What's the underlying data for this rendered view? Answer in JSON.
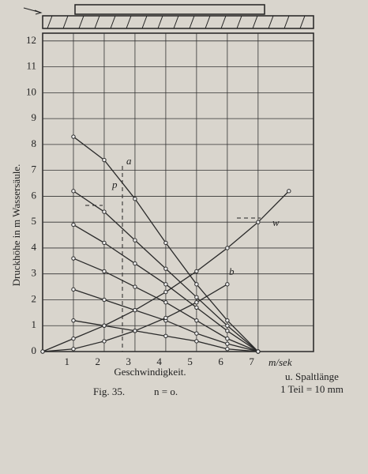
{
  "chart_data": {
    "type": "line",
    "y_label": "Druckhöhe in m Wassersäule.",
    "x_label": "Geschwindigkeit.",
    "x_unit": "m/sek",
    "caption": "Fig. 35.",
    "caption_condition": "n = o.",
    "side_note": "u. Spaltlänge",
    "scale_note": "1 Teil = 10 mm",
    "annotations": [
      "a",
      "b",
      "p",
      "w"
    ],
    "color": "#2a2a2a",
    "grid": true,
    "x": [
      0,
      1,
      2,
      3,
      4,
      5,
      6,
      7,
      8
    ],
    "xlim": [
      0,
      8.8
    ],
    "xticks": [
      1,
      2,
      3,
      4,
      5,
      6,
      7
    ],
    "ylim": [
      0,
      12.3
    ],
    "yticks": [
      0,
      1,
      2,
      3,
      4,
      5,
      6,
      7,
      8,
      9,
      10,
      11,
      12
    ],
    "series": [
      {
        "values": [
          null,
          8.3,
          7.4,
          5.9,
          4.2,
          2.6,
          1.2,
          0,
          null
        ]
      },
      {
        "values": [
          null,
          6.2,
          5.4,
          4.3,
          3.2,
          2.1,
          1.0,
          0,
          null
        ]
      },
      {
        "values": [
          null,
          4.9,
          4.2,
          3.4,
          2.6,
          1.7,
          0.8,
          0,
          null
        ]
      },
      {
        "values": [
          null,
          3.6,
          3.1,
          2.5,
          1.9,
          1.2,
          0.5,
          0,
          null
        ]
      },
      {
        "values": [
          null,
          2.4,
          2.0,
          1.6,
          1.2,
          0.7,
          0.3,
          0,
          null
        ]
      },
      {
        "values": [
          null,
          1.2,
          1.0,
          0.8,
          0.6,
          0.4,
          0.1,
          0,
          null
        ]
      },
      {
        "values": [
          0,
          0.5,
          1.0,
          1.6,
          2.3,
          3.1,
          4.0,
          5.0,
          6.2
        ]
      },
      {
        "values": [
          0,
          0.1,
          0.4,
          0.8,
          1.3,
          1.9,
          2.6,
          null,
          null
        ]
      }
    ]
  }
}
